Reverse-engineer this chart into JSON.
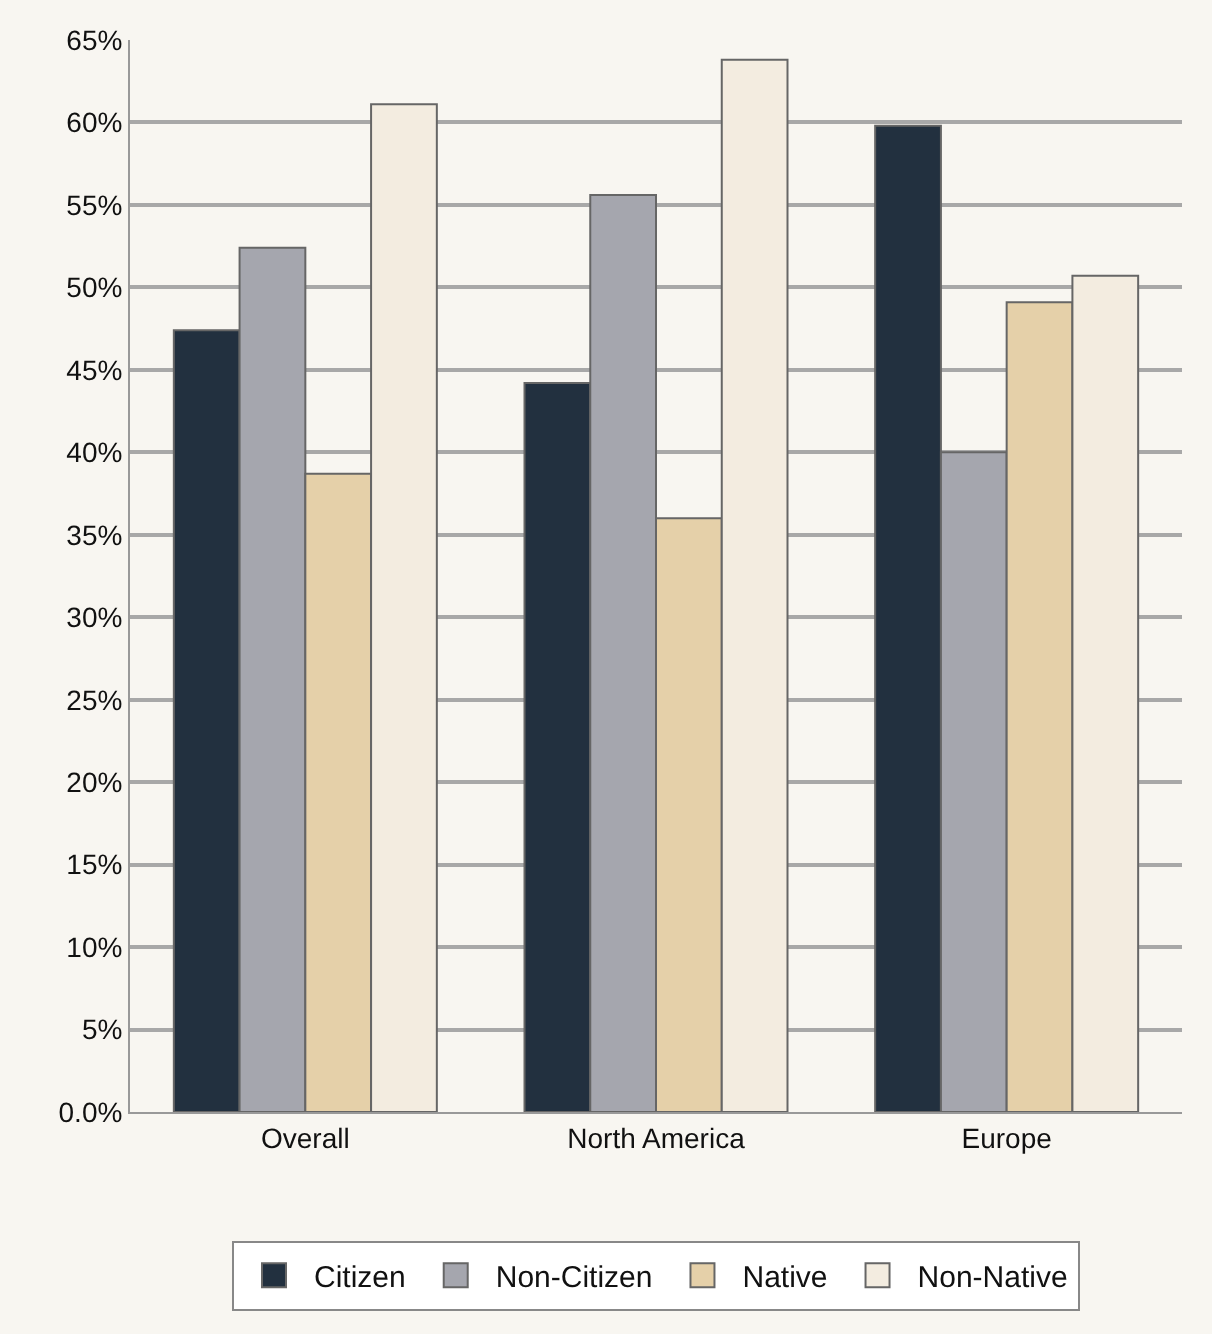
{
  "chart_data": {
    "type": "bar",
    "categories": [
      "Overall",
      "North America",
      "Europe"
    ],
    "series": [
      {
        "name": "Citizen",
        "color": "#22303f",
        "values": [
          47.4,
          44.2,
          59.8
        ]
      },
      {
        "name": "Non-Citizen",
        "color": "#a5a6ae",
        "values": [
          52.4,
          55.6,
          40.0
        ]
      },
      {
        "name": "Native",
        "color": "#e5d0a9",
        "values": [
          38.7,
          36.0,
          49.1
        ]
      },
      {
        "name": "Non-Native",
        "color": "#f3ece0",
        "values": [
          61.1,
          63.8,
          50.7
        ]
      }
    ],
    "ylim": [
      0,
      65
    ],
    "yticks": [
      {
        "value": 0,
        "label": "0.0%"
      },
      {
        "value": 5,
        "label": "5%"
      },
      {
        "value": 10,
        "label": "10%"
      },
      {
        "value": 15,
        "label": "15%"
      },
      {
        "value": 20,
        "label": "20%"
      },
      {
        "value": 25,
        "label": "25%"
      },
      {
        "value": 30,
        "label": "30%"
      },
      {
        "value": 35,
        "label": "35%"
      },
      {
        "value": 40,
        "label": "40%"
      },
      {
        "value": 45,
        "label": "45%"
      },
      {
        "value": 50,
        "label": "50%"
      },
      {
        "value": 55,
        "label": "55%"
      },
      {
        "value": 60,
        "label": "60%"
      },
      {
        "value": 65,
        "label": "65%"
      }
    ],
    "grid": "y",
    "legend": "bottom"
  }
}
